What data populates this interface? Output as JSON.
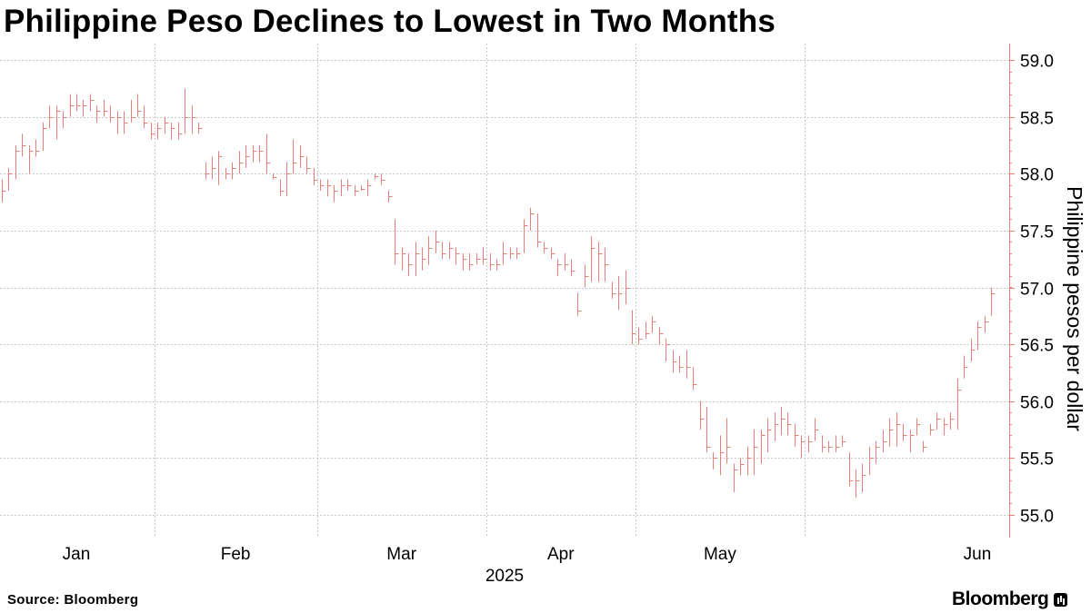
{
  "chart_data": {
    "type": "ohlc-bar",
    "title": "Philippine Peso Declines to Lowest in Two Months",
    "ylabel": "Philippine pesos per dollar",
    "xlabel": "2025",
    "ylim": [
      54.8,
      59.2
    ],
    "yticks": [
      55.0,
      55.5,
      56.0,
      56.5,
      57.0,
      57.5,
      58.0,
      58.5,
      59.0
    ],
    "ytick_labels": [
      "55.0",
      "55.5",
      "56.0",
      "56.5",
      "57.0",
      "57.5",
      "58.0",
      "58.5",
      "59.0"
    ],
    "months": [
      "Jan",
      "Feb",
      "Mar",
      "Apr",
      "May",
      "Jun"
    ],
    "month_start_index": [
      0,
      23,
      47,
      72,
      94,
      119
    ],
    "bar_color": "#e7807a",
    "grid": true,
    "legend": "none",
    "values": [
      [
        57.95,
        57.75,
        57.85
      ],
      [
        58.05,
        57.85,
        58.0
      ],
      [
        58.25,
        57.95,
        58.2
      ],
      [
        58.35,
        58.15,
        58.25
      ],
      [
        58.25,
        58.0,
        58.2
      ],
      [
        58.3,
        58.15,
        58.2
      ],
      [
        58.45,
        58.2,
        58.4
      ],
      [
        58.6,
        58.4,
        58.5
      ],
      [
        58.6,
        58.3,
        58.55
      ],
      [
        58.55,
        58.4,
        58.5
      ],
      [
        58.7,
        58.5,
        58.6
      ],
      [
        58.7,
        58.55,
        58.6
      ],
      [
        58.65,
        58.5,
        58.6
      ],
      [
        58.7,
        58.55,
        58.65
      ],
      [
        58.6,
        58.45,
        58.55
      ],
      [
        58.65,
        58.5,
        58.55
      ],
      [
        58.6,
        58.45,
        58.5
      ],
      [
        58.55,
        58.35,
        58.5
      ],
      [
        58.55,
        58.35,
        58.45
      ],
      [
        58.65,
        58.45,
        58.5
      ],
      [
        58.7,
        58.5,
        58.55
      ],
      [
        58.6,
        58.4,
        58.45
      ],
      [
        58.45,
        58.3,
        58.35
      ],
      [
        58.45,
        58.3,
        58.4
      ],
      [
        58.5,
        58.35,
        58.45
      ],
      [
        58.45,
        58.3,
        58.4
      ],
      [
        58.45,
        58.3,
        58.35
      ],
      [
        58.75,
        58.35,
        58.5
      ],
      [
        58.6,
        58.35,
        58.5
      ],
      [
        58.45,
        58.35,
        58.4
      ],
      [
        58.1,
        57.95,
        58.0
      ],
      [
        58.15,
        57.95,
        58.05
      ],
      [
        58.2,
        57.9,
        58.15
      ],
      [
        58.05,
        57.95,
        58.0
      ],
      [
        58.1,
        57.95,
        58.05
      ],
      [
        58.2,
        58.0,
        58.1
      ],
      [
        58.25,
        58.05,
        58.15
      ],
      [
        58.25,
        58.1,
        58.2
      ],
      [
        58.25,
        58.1,
        58.2
      ],
      [
        58.35,
        58.0,
        58.1
      ],
      [
        58.0,
        57.95,
        57.97
      ],
      [
        57.95,
        57.8,
        57.85
      ],
      [
        58.1,
        57.8,
        58.0
      ],
      [
        58.3,
        58.0,
        58.1
      ],
      [
        58.25,
        58.05,
        58.15
      ],
      [
        58.15,
        58.0,
        58.05
      ],
      [
        58.05,
        57.9,
        57.95
      ],
      [
        57.95,
        57.85,
        57.9
      ],
      [
        57.95,
        57.8,
        57.9
      ],
      [
        57.9,
        57.75,
        57.85
      ],
      [
        57.95,
        57.8,
        57.9
      ],
      [
        57.95,
        57.85,
        57.9
      ],
      [
        57.9,
        57.8,
        57.85
      ],
      [
        57.9,
        57.85,
        57.87
      ],
      [
        57.95,
        57.8,
        57.9
      ],
      [
        58.0,
        57.95,
        57.98
      ],
      [
        58.0,
        57.9,
        57.95
      ],
      [
        57.85,
        57.75,
        57.8
      ],
      [
        57.6,
        57.2,
        57.3
      ],
      [
        57.35,
        57.15,
        57.3
      ],
      [
        57.3,
        57.1,
        57.2
      ],
      [
        57.4,
        57.1,
        57.3
      ],
      [
        57.35,
        57.15,
        57.25
      ],
      [
        57.45,
        57.2,
        57.35
      ],
      [
        57.5,
        57.3,
        57.4
      ],
      [
        57.4,
        57.25,
        57.3
      ],
      [
        57.4,
        57.25,
        57.35
      ],
      [
        57.35,
        57.2,
        57.3
      ],
      [
        57.3,
        57.15,
        57.25
      ],
      [
        57.3,
        57.15,
        57.2
      ],
      [
        57.3,
        57.2,
        57.25
      ],
      [
        57.35,
        57.2,
        57.25
      ],
      [
        57.3,
        57.15,
        57.2
      ],
      [
        57.25,
        57.15,
        57.2
      ],
      [
        57.4,
        57.2,
        57.3
      ],
      [
        57.35,
        57.25,
        57.3
      ],
      [
        57.35,
        57.25,
        57.3
      ],
      [
        57.6,
        57.3,
        57.55
      ],
      [
        57.7,
        57.5,
        57.65
      ],
      [
        57.65,
        57.35,
        57.4
      ],
      [
        57.4,
        57.3,
        57.35
      ],
      [
        57.35,
        57.25,
        57.3
      ],
      [
        57.25,
        57.1,
        57.2
      ],
      [
        57.3,
        57.15,
        57.2
      ],
      [
        57.25,
        57.1,
        57.15
      ],
      [
        56.95,
        56.75,
        56.8
      ],
      [
        57.2,
        57.0,
        57.1
      ],
      [
        57.45,
        57.05,
        57.35
      ],
      [
        57.4,
        57.05,
        57.3
      ],
      [
        57.35,
        57.05,
        57.2
      ],
      [
        57.05,
        56.9,
        56.95
      ],
      [
        57.1,
        56.8,
        56.95
      ],
      [
        57.15,
        56.85,
        57.0
      ],
      [
        56.8,
        56.5,
        56.6
      ],
      [
        56.65,
        56.5,
        56.55
      ],
      [
        56.7,
        56.55,
        56.6
      ],
      [
        56.75,
        56.6,
        56.7
      ],
      [
        56.65,
        56.5,
        56.6
      ],
      [
        56.55,
        56.35,
        56.5
      ],
      [
        56.45,
        56.25,
        56.35
      ],
      [
        56.4,
        56.25,
        56.3
      ],
      [
        56.45,
        56.2,
        56.3
      ],
      [
        56.3,
        56.1,
        56.15
      ],
      [
        56.0,
        55.75,
        55.85
      ],
      [
        55.95,
        55.55,
        55.6
      ],
      [
        55.55,
        55.4,
        55.5
      ],
      [
        55.7,
        55.35,
        55.55
      ],
      [
        55.85,
        55.45,
        55.6
      ],
      [
        55.45,
        55.2,
        55.4
      ],
      [
        55.5,
        55.35,
        55.45
      ],
      [
        55.6,
        55.35,
        55.5
      ],
      [
        55.75,
        55.35,
        55.6
      ],
      [
        55.75,
        55.45,
        55.7
      ],
      [
        55.85,
        55.55,
        55.75
      ],
      [
        55.9,
        55.65,
        55.8
      ],
      [
        55.95,
        55.7,
        55.85
      ],
      [
        55.9,
        55.7,
        55.8
      ],
      [
        55.8,
        55.6,
        55.7
      ],
      [
        55.7,
        55.5,
        55.65
      ],
      [
        55.7,
        55.55,
        55.65
      ],
      [
        55.85,
        55.65,
        55.75
      ],
      [
        55.7,
        55.55,
        55.6
      ],
      [
        55.65,
        55.55,
        55.6
      ],
      [
        55.7,
        55.55,
        55.6
      ],
      [
        55.7,
        55.6,
        55.65
      ],
      [
        55.55,
        55.25,
        55.3
      ],
      [
        55.4,
        55.15,
        55.3
      ],
      [
        55.45,
        55.2,
        55.35
      ],
      [
        55.6,
        55.35,
        55.5
      ],
      [
        55.65,
        55.45,
        55.6
      ],
      [
        55.75,
        55.55,
        55.65
      ],
      [
        55.85,
        55.6,
        55.75
      ],
      [
        55.9,
        55.6,
        55.8
      ],
      [
        55.8,
        55.65,
        55.7
      ],
      [
        55.75,
        55.55,
        55.7
      ],
      [
        55.85,
        55.7,
        55.8
      ],
      [
        55.65,
        55.55,
        55.6
      ],
      [
        55.8,
        55.7,
        55.75
      ],
      [
        55.9,
        55.75,
        55.85
      ],
      [
        55.85,
        55.7,
        55.8
      ],
      [
        55.9,
        55.75,
        55.85
      ],
      [
        56.2,
        55.75,
        56.1
      ],
      [
        56.4,
        56.2,
        56.3
      ],
      [
        56.55,
        56.35,
        56.45
      ],
      [
        56.7,
        56.45,
        56.65
      ],
      [
        56.75,
        56.6,
        56.7
      ],
      [
        57.0,
        56.75,
        56.95
      ]
    ]
  },
  "footer": {
    "source": "Source: Bloomberg",
    "brand": "Bloomberg"
  }
}
